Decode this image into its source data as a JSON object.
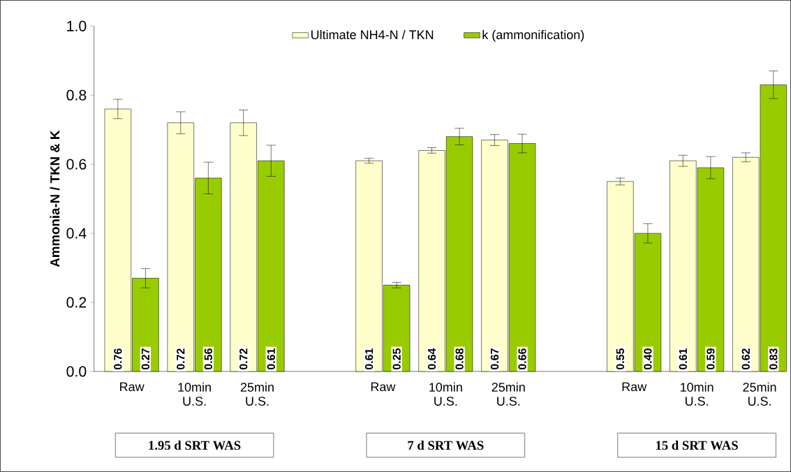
{
  "chart_data": {
    "type": "bar",
    "ylabel": "Ammonia-N / TKN & K",
    "categories": [
      "Raw",
      "10min U.S.",
      "25min U.S.",
      null,
      "Raw",
      "10min U.S.",
      "25min U.S.",
      null,
      "Raw",
      "10min U.S.",
      "25min U.S."
    ],
    "series": [
      {
        "name": "Ultimate NH4-N / TKN",
        "color": "#ffffcc",
        "values": [
          0.76,
          0.72,
          0.72,
          null,
          0.61,
          0.64,
          0.67,
          null,
          0.55,
          0.61,
          0.62
        ],
        "errors": [
          0.028,
          0.032,
          0.037,
          null,
          0.007,
          0.008,
          0.016,
          null,
          0.01,
          0.016,
          0.013
        ],
        "value_labels": [
          "0.76",
          "0.72",
          "0.72",
          null,
          "0.61",
          "0.64",
          "0.67",
          null,
          "0.55",
          "0.61",
          "0.62"
        ]
      },
      {
        "name": "k (ammonification)",
        "color": "#99cc00",
        "values": [
          0.27,
          0.56,
          0.61,
          null,
          0.25,
          0.68,
          0.66,
          null,
          0.4,
          0.59,
          0.83
        ],
        "errors": [
          0.028,
          0.046,
          0.045,
          null,
          0.008,
          0.024,
          0.027,
          null,
          0.028,
          0.032,
          0.04
        ],
        "value_labels": [
          "0.27",
          "0.56",
          "0.61",
          null,
          "0.25",
          "0.68",
          "0.66",
          null,
          "0.40",
          "0.59",
          "0.83"
        ]
      }
    ],
    "ylim": [
      0,
      1
    ],
    "yticks": [
      {
        "value": 0,
        "label": "0.0"
      },
      {
        "value": 0.2,
        "label": "0.2"
      },
      {
        "value": 0.4,
        "label": "0.4"
      },
      {
        "value": 0.6,
        "label": "0.6"
      },
      {
        "value": 0.8,
        "label": "0.8"
      },
      {
        "value": 1,
        "label": "1.0"
      }
    ],
    "legend": "top",
    "grid": false,
    "annotations": [
      "1.95 d SRT WAS",
      "7 d SRT WAS",
      "15 d SRT WAS"
    ]
  }
}
